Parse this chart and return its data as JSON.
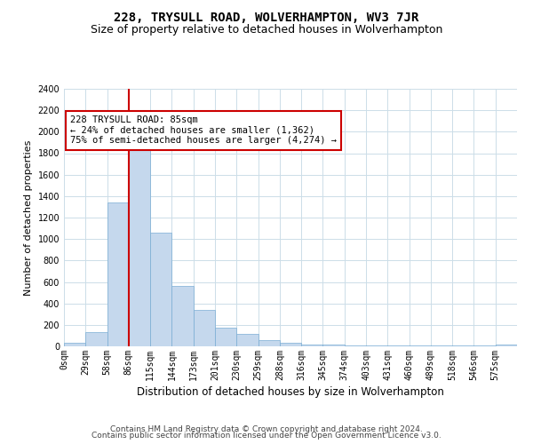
{
  "title": "228, TRYSULL ROAD, WOLVERHAMPTON, WV3 7JR",
  "subtitle": "Size of property relative to detached houses in Wolverhampton",
  "xlabel": "Distribution of detached houses by size in Wolverhampton",
  "ylabel": "Number of detached properties",
  "bar_labels": [
    "0sqm",
    "29sqm",
    "58sqm",
    "86sqm",
    "115sqm",
    "144sqm",
    "173sqm",
    "201sqm",
    "230sqm",
    "259sqm",
    "288sqm",
    "316sqm",
    "345sqm",
    "374sqm",
    "403sqm",
    "431sqm",
    "460sqm",
    "489sqm",
    "518sqm",
    "546sqm",
    "575sqm"
  ],
  "bar_heights": [
    30,
    130,
    1340,
    1900,
    1060,
    560,
    340,
    175,
    115,
    55,
    35,
    20,
    20,
    10,
    5,
    5,
    5,
    5,
    5,
    5,
    20
  ],
  "bar_color": "#c5d8ed",
  "bar_edgecolor": "#7aadd4",
  "annotation_text": "228 TRYSULL ROAD: 85sqm\n← 24% of detached houses are smaller (1,362)\n75% of semi-detached houses are larger (4,274) →",
  "annotation_box_color": "#ffffff",
  "annotation_box_edgecolor": "#cc0000",
  "vline_color": "#cc0000",
  "ylim": [
    0,
    2400
  ],
  "yticks": [
    0,
    200,
    400,
    600,
    800,
    1000,
    1200,
    1400,
    1600,
    1800,
    2000,
    2200,
    2400
  ],
  "footer1": "Contains HM Land Registry data © Crown copyright and database right 2024.",
  "footer2": "Contains public sector information licensed under the Open Government Licence v3.0.",
  "bg_color": "#ffffff",
  "grid_color": "#ccdde8",
  "title_fontsize": 10,
  "subtitle_fontsize": 9,
  "xlabel_fontsize": 8.5,
  "ylabel_fontsize": 8,
  "tick_fontsize": 7,
  "footer_fontsize": 6.5,
  "annotation_fontsize": 7.5
}
